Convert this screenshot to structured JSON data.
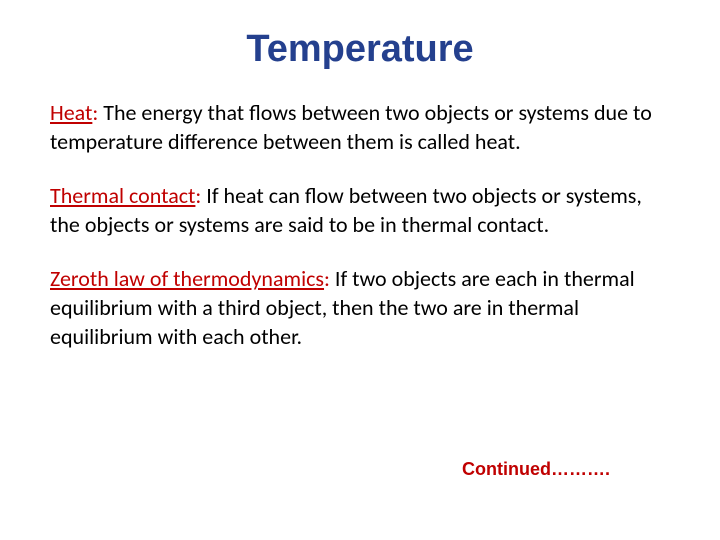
{
  "title": "Temperature",
  "definitions": [
    {
      "term": "Heat",
      "colon": ":",
      "text": "  The energy that flows between two objects or systems due to temperature difference between them is called heat."
    },
    {
      "term": "Thermal contact",
      "colon": ":",
      "text": "  If heat can flow between two objects or systems, the objects or systems are said to be in thermal contact."
    },
    {
      "term": "Zeroth law of thermodynamics",
      "colon": ":",
      "text": " If two objects are each in thermal equilibrium with a third object, then the two are in thermal equilibrium with each other."
    }
  ],
  "continued": "Continued……….",
  "colors": {
    "title_color": "#24408e",
    "term_color": "#c00000",
    "body_color": "#000000",
    "background": "#ffffff"
  },
  "fonts": {
    "title_family": "Comic Sans MS",
    "body_family": "Calibri",
    "title_size_pt": 28,
    "body_size_pt": 17,
    "continued_size_pt": 14
  }
}
